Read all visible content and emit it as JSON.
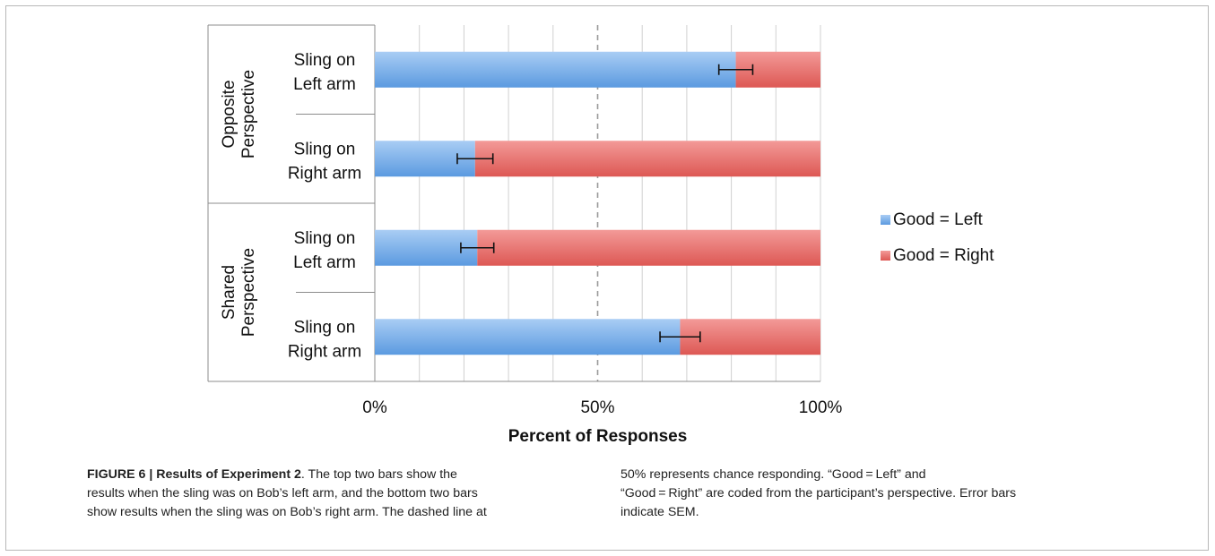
{
  "chart_data": {
    "type": "bar",
    "orientation": "horizontal",
    "stacked": true,
    "xlabel": "Percent of Responses",
    "ylabel": "",
    "xlim": [
      0,
      100
    ],
    "x_ticks": [
      "0%",
      "50%",
      "100%"
    ],
    "grid": "vertical",
    "reference_line": {
      "x": 50,
      "style": "dashed"
    },
    "groups": [
      {
        "label": "Opposite Perspective",
        "categories": [
          "Sling on Left arm",
          "Sling on Right arm"
        ]
      },
      {
        "label": "Shared Perspective",
        "categories": [
          "Sling on Left arm",
          "Sling on Right arm"
        ]
      }
    ],
    "categories": [
      [
        "Sling on",
        "Left arm"
      ],
      [
        "Sling on",
        "Right arm"
      ],
      [
        "Sling on",
        "Left arm"
      ],
      [
        "Sling on",
        "Right arm"
      ]
    ],
    "series": [
      {
        "name": "Good = Left",
        "color": "#6fa8e6",
        "values": [
          81,
          22.5,
          23,
          68.5
        ]
      },
      {
        "name": "Good = Right",
        "color": "#e86a6a",
        "values": [
          19,
          77.5,
          77,
          31.5
        ]
      }
    ],
    "error_bars": {
      "series": "Good = Left",
      "sem": [
        3.8,
        4.0,
        3.7,
        4.5
      ]
    },
    "legend_position": "right"
  },
  "caption": {
    "label": "FIGURE 6 | Results of Experiment 2",
    "left_lines": [
      ". The top two bars show the",
      "results when the sling was on Bob’s left arm, and the bottom two bars",
      "show results when the sling was on Bob’s right arm. The dashed line at"
    ],
    "right_lines": [
      "50% represents chance responding. “Good = Left” and",
      "“Good = Right” are coded from the participant’s perspective. Error bars",
      "indicate SEM."
    ]
  }
}
